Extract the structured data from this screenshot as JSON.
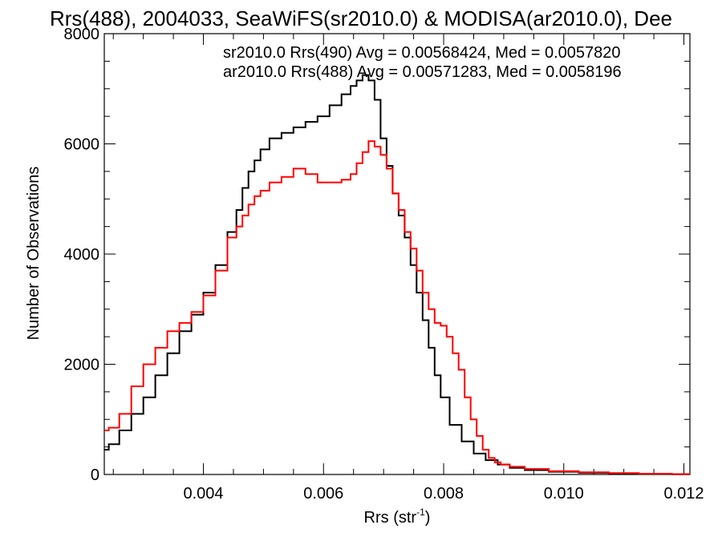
{
  "chart_data": {
    "type": "line",
    "title": "Rrs(488), 2004033, SeaWiFS(sr2010.0) & MODISA(ar2010.0), Dee",
    "xlabel": "Rrs (str",
    "xlabel_sup": "-1",
    "xlabel_close": ")",
    "ylabel": "Number of Observations",
    "xlim": [
      0.00235,
      0.0121
    ],
    "ylim": [
      0,
      8000
    ],
    "xticks": [
      0.004,
      0.006,
      0.008,
      0.01,
      0.012
    ],
    "xtick_labels": [
      "0.004",
      "0.006",
      "0.008",
      "0.010",
      "0.012"
    ],
    "yticks": [
      0,
      2000,
      4000,
      6000,
      8000
    ],
    "ytick_labels": [
      "0",
      "2000",
      "4000",
      "6000",
      "8000"
    ],
    "grid": false,
    "legend": [
      {
        "text": "sr2010.0 Rrs(490) Avg = 0.00568424, Med = 0.0057820",
        "color": "#000000"
      },
      {
        "text": "ar2010.0 Rrs(488) Avg = 0.00571283, Med = 0.0058196",
        "color": "#ff0000"
      }
    ],
    "series": [
      {
        "name": "sr2010.0 Rrs(490)",
        "color": "#000000",
        "x": [
          0.00235,
          0.0025,
          0.0027,
          0.0029,
          0.0031,
          0.0033,
          0.0035,
          0.0037,
          0.0039,
          0.0041,
          0.0043,
          0.0045,
          0.0046,
          0.0047,
          0.0048,
          0.0049,
          0.005,
          0.0052,
          0.0054,
          0.0056,
          0.0058,
          0.006,
          0.0062,
          0.0064,
          0.0065,
          0.0066,
          0.0067,
          0.0068,
          0.0069,
          0.007,
          0.0071,
          0.0072,
          0.0073,
          0.0074,
          0.0075,
          0.0076,
          0.0077,
          0.0078,
          0.0079,
          0.008,
          0.0082,
          0.0084,
          0.0086,
          0.0088,
          0.009,
          0.0092,
          0.0095,
          0.01,
          0.0105,
          0.011,
          0.0115,
          0.0121
        ],
        "y": [
          450,
          550,
          800,
          1100,
          1400,
          1800,
          2200,
          2600,
          2900,
          3300,
          3800,
          4400,
          4800,
          5200,
          5500,
          5700,
          5900,
          6100,
          6200,
          6300,
          6400,
          6500,
          6700,
          6900,
          7050,
          7150,
          7250,
          7150,
          6800,
          6100,
          5600,
          5100,
          4700,
          4300,
          3800,
          3300,
          2800,
          2300,
          1800,
          1400,
          900,
          600,
          380,
          260,
          180,
          120,
          80,
          50,
          30,
          20,
          10,
          5
        ]
      },
      {
        "name": "ar2010.0 Rrs(488)",
        "color": "#ff0000",
        "x": [
          0.00235,
          0.0025,
          0.0027,
          0.0029,
          0.0031,
          0.0033,
          0.0035,
          0.0037,
          0.0039,
          0.0041,
          0.0043,
          0.0045,
          0.0046,
          0.0047,
          0.0048,
          0.0049,
          0.005,
          0.0052,
          0.0054,
          0.0056,
          0.0058,
          0.006,
          0.0062,
          0.0064,
          0.0065,
          0.0066,
          0.0067,
          0.0068,
          0.0069,
          0.007,
          0.0071,
          0.0072,
          0.0073,
          0.0074,
          0.0075,
          0.0076,
          0.0077,
          0.0078,
          0.0079,
          0.008,
          0.0081,
          0.0082,
          0.0083,
          0.0084,
          0.0085,
          0.0086,
          0.0087,
          0.0088,
          0.0089,
          0.009,
          0.0092,
          0.0095,
          0.01,
          0.0105,
          0.011,
          0.0115,
          0.0121
        ],
        "y": [
          800,
          850,
          1100,
          1600,
          2000,
          2300,
          2600,
          2750,
          2950,
          3250,
          3700,
          4300,
          4500,
          4700,
          4900,
          5050,
          5150,
          5300,
          5400,
          5550,
          5450,
          5300,
          5300,
          5350,
          5450,
          5650,
          5850,
          6050,
          5950,
          5800,
          5550,
          5100,
          4800,
          4400,
          4100,
          3700,
          3300,
          3000,
          2750,
          2700,
          2500,
          2200,
          1900,
          1400,
          1000,
          700,
          450,
          300,
          220,
          180,
          140,
          100,
          60,
          40,
          25,
          15,
          8
        ]
      }
    ]
  }
}
